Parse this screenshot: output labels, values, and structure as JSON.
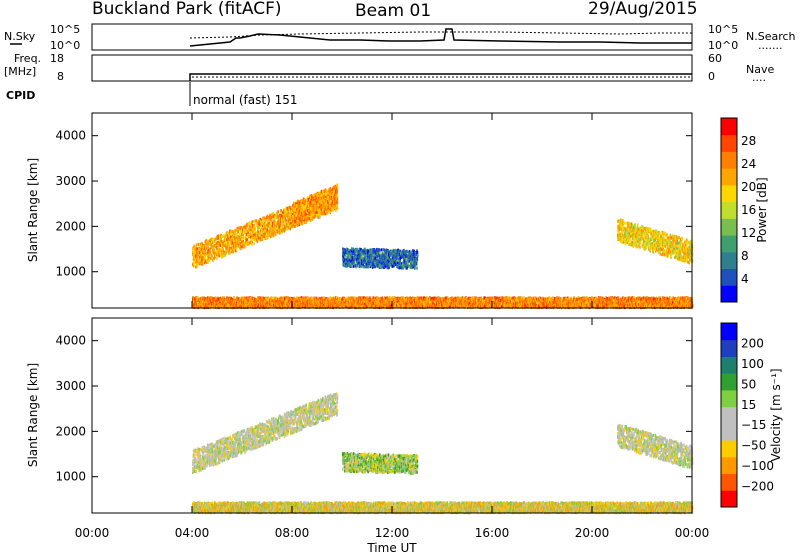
{
  "header": {
    "title": "Buckland Park (fitACF)",
    "beam": "Beam 01",
    "date": "29/Aug/2015"
  },
  "nsky_panel": {
    "left_label": "N.Sky",
    "left_ticks": [
      "10^5",
      "10^0"
    ],
    "right_ticks": [
      "10^5",
      "10^0"
    ],
    "right_label": "N.Search",
    "right_marker": "......."
  },
  "freq_panel": {
    "left_label_1": "Freq.",
    "left_label_2": "[MHz]",
    "left_ticks": [
      "18",
      "8"
    ],
    "right_ticks": [
      "60",
      "0"
    ],
    "right_label": "Nave",
    "right_marker": "...."
  },
  "cpid": {
    "label": "CPID",
    "mode_text": "normal (fast) 151"
  },
  "x_axis": {
    "label": "Time UT",
    "tick_labels": [
      "00:00",
      "04:00",
      "08:00",
      "12:00",
      "16:00",
      "20:00",
      "00:00"
    ]
  },
  "chart_data": [
    {
      "type": "heatmap",
      "title": "",
      "xlabel": "Time UT",
      "ylabel": "Slant Range [km]",
      "x_range_hours": [
        0,
        24
      ],
      "ylim": [
        200,
        4500
      ],
      "y_tick_labels": [
        "1000",
        "2000",
        "3000",
        "4000"
      ],
      "y_ticks": [
        1000,
        2000,
        3000,
        4000
      ],
      "colorbar_label": "Power [dB]",
      "colorbar_ticks": [
        "28",
        "24",
        "20",
        "16",
        "12",
        "8",
        "4"
      ],
      "colorbar_colors": [
        "#0000ff",
        "#2050c0",
        "#2f7f8f",
        "#3f9f6f",
        "#79bf4f",
        "#bfdf2f",
        "#ffd700",
        "#ffa500",
        "#ff7f00",
        "#ff4500",
        "#ff0000"
      ],
      "features": [
        {
          "name": "band-a",
          "t_start": 4.0,
          "t_end": 9.8,
          "range_start": 1350,
          "range_end": 2650,
          "thickness": 500,
          "level": 0.68
        },
        {
          "name": "band-b",
          "t_start": 8.0,
          "t_end": 9.8,
          "range_start": 2300,
          "range_end": 2700,
          "thickness": 500,
          "level": 0.72
        },
        {
          "name": "patch-c",
          "t_start": 10.0,
          "t_end": 13.0,
          "range_start": 1350,
          "range_end": 1300,
          "thickness": 400,
          "level": 0.2
        },
        {
          "name": "band-d",
          "t_start": 21.0,
          "t_end": 24.0,
          "range_start": 1950,
          "range_end": 1450,
          "thickness": 500,
          "level": 0.6
        },
        {
          "name": "near-range",
          "t_start": 4.0,
          "t_end": 24.0,
          "range_start": 350,
          "range_end": 350,
          "thickness": 220,
          "level": 0.75
        }
      ]
    },
    {
      "type": "heatmap",
      "title": "",
      "xlabel": "Time UT",
      "ylabel": "Slant Range [km]",
      "x_range_hours": [
        0,
        24
      ],
      "ylim": [
        200,
        4500
      ],
      "y_tick_labels": [
        "1000",
        "2000",
        "3000",
        "4000"
      ],
      "y_ticks": [
        1000,
        2000,
        3000,
        4000
      ],
      "colorbar_label": "Velocity [m s⁻¹]",
      "colorbar_ticks": [
        "200",
        "100",
        "50",
        "15",
        "−15",
        "−50",
        "−100",
        "−200"
      ],
      "colorbar_colors": [
        "#ff0000",
        "#ff5500",
        "#ff9900",
        "#ffcc00",
        "#c0c0c0",
        "#c0c0c0",
        "#7fd040",
        "#30a030",
        "#1f7f6f",
        "#1f3fbf",
        "#0000ff"
      ],
      "features": [
        {
          "name": "band-a",
          "t_start": 4.0,
          "t_end": 9.8,
          "range_start": 1350,
          "range_end": 2650,
          "thickness": 500,
          "color": "gray"
        },
        {
          "name": "patch-c",
          "t_start": 10.0,
          "t_end": 13.0,
          "range_start": 1350,
          "range_end": 1300,
          "thickness": 400,
          "color": "green"
        },
        {
          "name": "band-d",
          "t_start": 21.0,
          "t_end": 24.0,
          "range_start": 1950,
          "range_end": 1450,
          "thickness": 500,
          "color": "gray"
        },
        {
          "name": "near-range",
          "t_start": 4.0,
          "t_end": 24.0,
          "range_start": 350,
          "range_end": 350,
          "thickness": 220,
          "color": "orange"
        }
      ]
    }
  ]
}
